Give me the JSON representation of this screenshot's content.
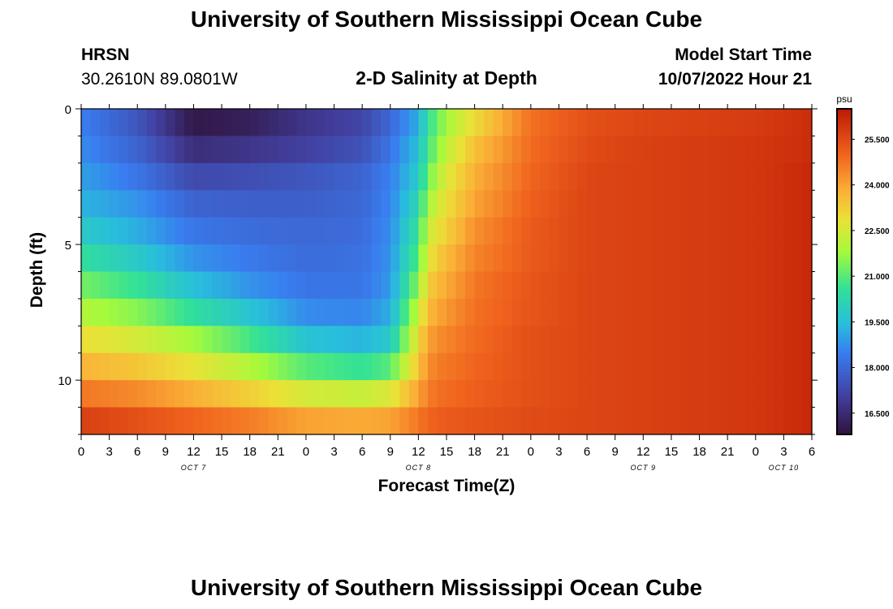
{
  "page_title": "University of Southern Mississippi Ocean Cube",
  "page_title_repeat": "University of Southern Mississippi Ocean Cube",
  "station": {
    "name": "HRSN",
    "coordinates": "30.2610N  89.0801W"
  },
  "model": {
    "label": "Model Start Time",
    "time": "10/07/2022 Hour 21"
  },
  "chart_data": {
    "type": "heatmap",
    "title": "2-D Salinity at Depth",
    "xlabel": "Forecast Time(Z)",
    "ylabel": "Depth (ft)",
    "colorbar_unit": "psu",
    "x_hours_range": [
      0,
      78
    ],
    "y_depth_range": [
      0,
      12
    ],
    "y_ticks": [
      "0",
      "5",
      "10"
    ],
    "y_tick_values": [
      0,
      5,
      10
    ],
    "x_tick_labels": [
      "0",
      "3",
      "6",
      "9",
      "12",
      "15",
      "18",
      "21",
      "0",
      "3",
      "6",
      "9",
      "12",
      "15",
      "18",
      "21",
      "0",
      "3",
      "6",
      "9",
      "12",
      "15",
      "18",
      "21",
      "0",
      "3",
      "6"
    ],
    "date_labels": [
      {
        "text": "OCT 7",
        "hour": 12
      },
      {
        "text": "OCT 8",
        "hour": 36
      },
      {
        "text": "OCT 9",
        "hour": 60
      },
      {
        "text": "OCT 10",
        "hour": 75
      }
    ],
    "colorbar_ticks": [
      "16.500",
      "18.000",
      "19.500",
      "21.000",
      "22.500",
      "24.000",
      "25.500"
    ],
    "colorbar_tick_values": [
      16.5,
      18.0,
      19.5,
      21.0,
      22.5,
      24.0,
      25.5
    ],
    "value_range": [
      15.8,
      26.5
    ],
    "depth_layers_ft": [
      0.5,
      1.5,
      2.5,
      3.5,
      4.5,
      5.5,
      6.5,
      7.5,
      8.5,
      9.5,
      10.5,
      11.5
    ],
    "time_hours": [
      0,
      6,
      12,
      18,
      24,
      30,
      33,
      36,
      37,
      38,
      39,
      42,
      48,
      54,
      60,
      66,
      72,
      78
    ],
    "salinity": [
      [
        18.5,
        17.6,
        16.0,
        16.2,
        16.8,
        17.2,
        18.0,
        19.2,
        20.5,
        21.2,
        21.8,
        23.0,
        24.8,
        25.4,
        25.6,
        25.7,
        25.8,
        26.1
      ],
      [
        18.7,
        17.9,
        16.6,
        16.8,
        17.1,
        17.5,
        18.3,
        19.5,
        20.8,
        21.5,
        22.2,
        23.5,
        24.9,
        25.5,
        25.7,
        25.8,
        25.9,
        26.1
      ],
      [
        19.0,
        18.3,
        17.3,
        17.4,
        17.6,
        17.9,
        18.5,
        19.8,
        21.2,
        22.0,
        22.6,
        23.8,
        25.0,
        25.6,
        25.7,
        25.8,
        25.9,
        26.2
      ],
      [
        19.3,
        18.8,
        17.9,
        17.8,
        17.8,
        18.0,
        18.6,
        20.2,
        21.8,
        22.4,
        22.9,
        24.0,
        25.1,
        25.6,
        25.7,
        25.8,
        25.9,
        26.2
      ],
      [
        19.8,
        19.2,
        18.3,
        18.1,
        18.0,
        18.1,
        18.7,
        20.6,
        22.3,
        22.8,
        23.2,
        24.3,
        25.2,
        25.6,
        25.7,
        25.8,
        25.9,
        26.2
      ],
      [
        20.5,
        19.8,
        18.8,
        18.4,
        18.1,
        18.2,
        18.8,
        21.0,
        22.7,
        23.2,
        23.6,
        24.5,
        25.2,
        25.6,
        25.7,
        25.8,
        25.9,
        26.2
      ],
      [
        21.3,
        20.6,
        19.5,
        18.8,
        18.3,
        18.3,
        18.9,
        21.6,
        23.2,
        23.6,
        23.9,
        24.7,
        25.3,
        25.6,
        25.7,
        25.8,
        25.9,
        26.2
      ],
      [
        22.0,
        21.5,
        20.5,
        19.6,
        18.7,
        18.6,
        19.2,
        22.3,
        23.6,
        23.9,
        24.2,
        24.8,
        25.3,
        25.6,
        25.7,
        25.8,
        25.9,
        26.2
      ],
      [
        22.9,
        22.5,
        21.8,
        20.8,
        19.6,
        19.3,
        19.8,
        22.9,
        24.0,
        24.3,
        24.5,
        24.9,
        25.4,
        25.6,
        25.7,
        25.8,
        25.9,
        26.2
      ],
      [
        23.7,
        23.4,
        22.8,
        22.0,
        21.0,
        20.6,
        21.0,
        23.4,
        24.3,
        24.6,
        24.7,
        25.0,
        25.4,
        25.6,
        25.7,
        25.8,
        25.9,
        26.2
      ],
      [
        24.7,
        24.4,
        23.8,
        23.2,
        22.5,
        22.3,
        22.6,
        24.0,
        24.6,
        24.8,
        24.9,
        25.1,
        25.4,
        25.6,
        25.7,
        25.8,
        25.9,
        26.2
      ],
      [
        25.7,
        25.4,
        25.0,
        24.6,
        24.0,
        23.9,
        24.0,
        24.7,
        25.0,
        25.1,
        25.2,
        25.3,
        25.5,
        25.6,
        25.7,
        25.8,
        25.9,
        26.2
      ]
    ]
  }
}
